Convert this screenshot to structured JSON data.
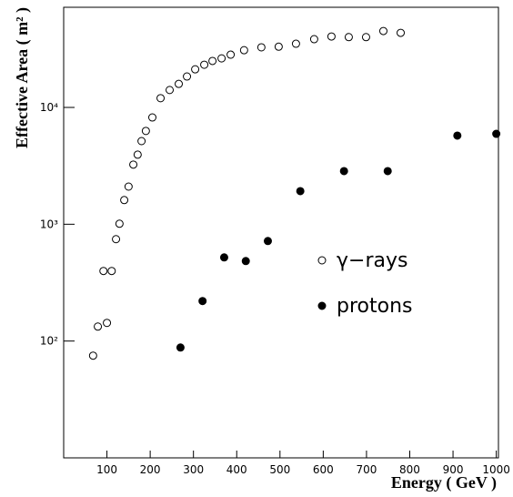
{
  "chart_data": {
    "type": "scatter",
    "x_label": "Energy ( GeV )",
    "y_label": "Effective Area ( m² )",
    "xlim": [
      0,
      1005
    ],
    "xticks": [
      100,
      200,
      300,
      400,
      500,
      600,
      700,
      800,
      900,
      1000
    ],
    "ylim": [
      10,
      72000
    ],
    "y_log": true,
    "yticks": [
      {
        "value": 100,
        "label": "10²"
      },
      {
        "value": 1000,
        "label": "10³"
      },
      {
        "value": 10000,
        "label": "10⁴"
      }
    ],
    "series": [
      {
        "name": "γ−rays",
        "color": "#000000",
        "marker": "open",
        "x": [
          68,
          79,
          92,
          100,
          111,
          121,
          129,
          140,
          150,
          161,
          171,
          180,
          190,
          205,
          224,
          245,
          266,
          285,
          304,
          325,
          344,
          365,
          386,
          417,
          457,
          497,
          537,
          579,
          619,
          659,
          699,
          739,
          779
        ],
        "values": [
          75,
          133,
          398,
          143,
          398,
          745,
          1010,
          1610,
          2100,
          3240,
          3940,
          5150,
          6290,
          8210,
          12000,
          14100,
          15900,
          18400,
          21200,
          23200,
          25000,
          26300,
          28300,
          30900,
          32700,
          33100,
          35100,
          38400,
          40500,
          40000,
          40000,
          45100,
          43500
        ]
      },
      {
        "name": "protons",
        "color": "#000000",
        "marker": "filled",
        "x": [
          270,
          321,
          371,
          421,
          472,
          547,
          648,
          749,
          910,
          1000
        ],
        "values": [
          88,
          220,
          520,
          484,
          718,
          1920,
          2850,
          2850,
          5740,
          5940
        ]
      }
    ]
  }
}
